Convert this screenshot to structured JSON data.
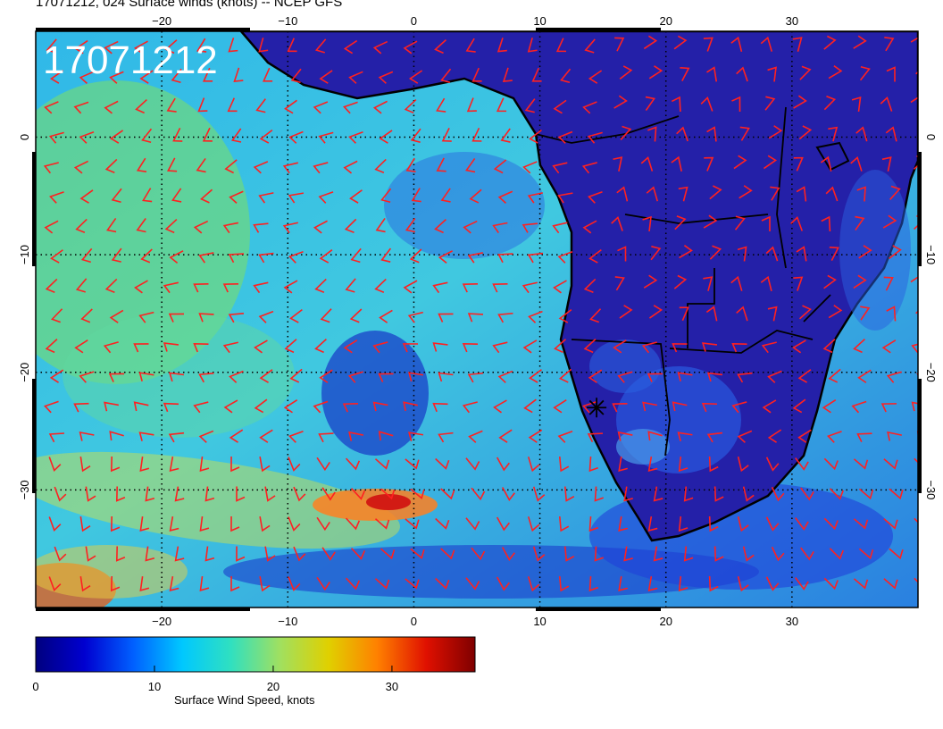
{
  "title": "17071212, 024 Surface winds (knots) -- NCEP GFS",
  "stamp": "17071212",
  "map": {
    "lon_range": [
      -30,
      40
    ],
    "lat_range": [
      -40,
      9
    ],
    "lon_ticks": [
      -20,
      -10,
      0,
      10,
      20,
      30
    ],
    "lat_ticks": [
      0,
      -10,
      -20,
      -30
    ],
    "gridlines": true,
    "marker": {
      "symbol": "asterisk",
      "lon": 14.5,
      "lat": -23
    }
  },
  "colors": {
    "wind_barb": "#ff2020",
    "coastline": "#000000",
    "gridline": "#000000"
  },
  "colorbar": {
    "label": "Surface Wind Speed, knots",
    "range": [
      0,
      37
    ],
    "ticks": [
      0,
      10,
      20,
      30
    ],
    "stops": [
      "#00007f",
      "#0000d0",
      "#0060ff",
      "#00c8ff",
      "#30e0c0",
      "#a0e060",
      "#e0d000",
      "#ff8000",
      "#e01000",
      "#7f0000"
    ]
  }
}
